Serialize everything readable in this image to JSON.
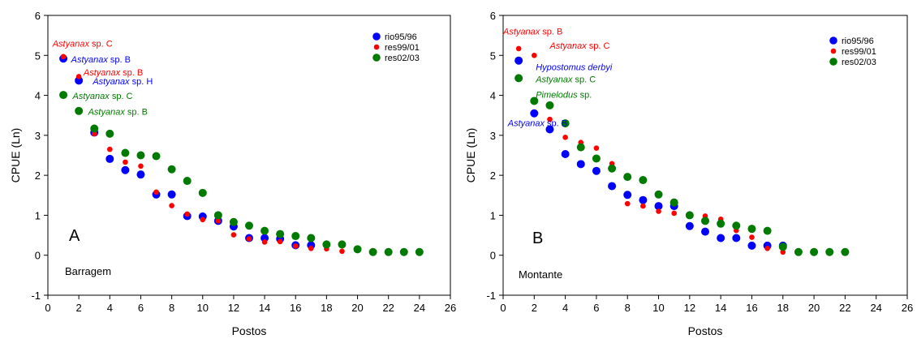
{
  "colors": {
    "rio95/96": "#0000ff",
    "res99/01": "#ff0000",
    "res02/03": "#007a00"
  },
  "chart_data": [
    {
      "type": "scatter",
      "panel_letter": "A",
      "site_label": "Barragem",
      "xlabel": "Postos",
      "ylabel": "CPUE (Ln)",
      "xlim": [
        0,
        26
      ],
      "ylim": [
        -1,
        6
      ],
      "xticks": [
        "0",
        "2",
        "4",
        "6",
        "8",
        "10",
        "12",
        "14",
        "16",
        "18",
        "20",
        "22",
        "24",
        "26"
      ],
      "yticks": [
        "-1",
        "0",
        "1",
        "2",
        "3",
        "4",
        "5",
        "6"
      ],
      "grid": false,
      "legend_position": "top-right",
      "series": [
        {
          "name": "rio95/96",
          "marker": "large",
          "x": [
            1,
            2,
            3,
            4,
            5,
            6,
            7,
            8,
            9,
            10,
            11,
            12,
            13,
            14,
            15,
            16,
            17
          ],
          "y": [
            4.92,
            4.37,
            3.07,
            2.41,
            2.13,
            2.02,
            1.52,
            1.52,
            0.98,
            0.97,
            0.86,
            0.72,
            0.43,
            0.43,
            0.41,
            0.25,
            0.25
          ]
        },
        {
          "name": "res99/01",
          "marker": "small",
          "x": [
            1,
            2,
            3,
            4,
            5,
            6,
            7,
            8,
            9,
            10,
            11,
            12,
            13,
            14,
            15,
            16,
            17,
            18,
            19
          ],
          "y": [
            4.97,
            4.47,
            3.04,
            2.65,
            2.33,
            2.23,
            1.58,
            1.24,
            1.03,
            0.89,
            0.86,
            0.51,
            0.41,
            0.33,
            0.34,
            0.23,
            0.17,
            0.16,
            0.1
          ]
        },
        {
          "name": "res02/03",
          "marker": "large",
          "x": [
            1,
            2,
            3,
            4,
            5,
            6,
            7,
            8,
            9,
            10,
            11,
            12,
            13,
            14,
            15,
            16,
            17,
            18,
            19,
            20,
            21,
            22,
            23,
            24
          ],
          "y": [
            4.01,
            3.61,
            3.17,
            3.04,
            2.56,
            2.5,
            2.48,
            2.15,
            1.86,
            1.56,
            1.0,
            0.83,
            0.74,
            0.61,
            0.53,
            0.48,
            0.43,
            0.27,
            0.27,
            0.15,
            0.08,
            0.08,
            0.08,
            0.08
          ]
        }
      ],
      "annotations": [
        {
          "genus": "Astyanax",
          "rest": " sp. C",
          "color": "#ff0000",
          "x": 0.3,
          "y": 5.22
        },
        {
          "genus": "Astyanax",
          "rest": " sp. B",
          "color": "#0000ff",
          "x": 1.5,
          "y": 4.82
        },
        {
          "genus": "Astyanax",
          "rest": " sp. B",
          "color": "#ff0000",
          "x": 2.3,
          "y": 4.5
        },
        {
          "genus": "Astyanax",
          "rest": " sp. H",
          "color": "#0000ff",
          "x": 2.9,
          "y": 4.28
        },
        {
          "genus": "Astyanax",
          "rest": " sp. C",
          "color": "#007a00",
          "x": 1.6,
          "y": 3.91
        },
        {
          "genus": "Astyanax",
          "rest": " sp. B",
          "color": "#007a00",
          "x": 2.6,
          "y": 3.51
        }
      ]
    },
    {
      "type": "scatter",
      "panel_letter": "B",
      "site_label": "Montante",
      "xlabel": "Postos",
      "ylabel": "CPUE (Ln)",
      "xlim": [
        0,
        26
      ],
      "ylim": [
        -1,
        6
      ],
      "xticks": [
        "0",
        "2",
        "4",
        "6",
        "8",
        "10",
        "12",
        "14",
        "16",
        "18",
        "20",
        "22",
        "24",
        "26"
      ],
      "yticks": [
        "-1",
        "0",
        "1",
        "2",
        "3",
        "4",
        "5",
        "6"
      ],
      "grid": false,
      "legend_position": "top-right",
      "series": [
        {
          "name": "rio95/96",
          "marker": "large",
          "x": [
            1,
            2,
            3,
            4,
            5,
            6,
            7,
            8,
            9,
            10,
            11,
            12,
            13,
            14,
            15,
            16,
            17,
            18
          ],
          "y": [
            4.87,
            3.55,
            3.15,
            2.53,
            2.28,
            2.11,
            1.73,
            1.51,
            1.38,
            1.23,
            1.23,
            0.73,
            0.59,
            0.43,
            0.43,
            0.24,
            0.24,
            0.24
          ]
        },
        {
          "name": "res99/01",
          "marker": "small",
          "x": [
            1,
            2,
            3,
            4,
            5,
            6,
            7,
            8,
            9,
            10,
            11,
            12,
            13,
            14,
            15,
            16,
            17,
            18
          ],
          "y": [
            5.17,
            5.0,
            3.4,
            2.95,
            2.82,
            2.68,
            2.29,
            1.29,
            1.23,
            1.1,
            1.05,
            0.99,
            0.98,
            0.9,
            0.62,
            0.45,
            0.17,
            0.08
          ]
        },
        {
          "name": "res02/03",
          "marker": "large",
          "x": [
            1,
            2,
            3,
            4,
            5,
            6,
            7,
            8,
            9,
            10,
            11,
            12,
            13,
            14,
            15,
            16,
            17,
            18,
            19,
            20,
            21,
            22
          ],
          "y": [
            4.43,
            3.86,
            3.75,
            3.3,
            2.7,
            2.42,
            2.17,
            1.96,
            1.88,
            1.52,
            1.32,
            1.0,
            0.86,
            0.79,
            0.74,
            0.66,
            0.61,
            0.21,
            0.08,
            0.08,
            0.08,
            0.08
          ]
        }
      ],
      "annotations": [
        {
          "genus": "Astyanax",
          "rest": " sp. B",
          "color": "#ff0000",
          "x": 0.0,
          "y": 5.52
        },
        {
          "genus": "Astyanax",
          "rest": " sp. C",
          "color": "#ff0000",
          "x": 3.0,
          "y": 5.17
        },
        {
          "genus": "Hypostomus derbyi",
          "rest": "",
          "color": "#0000ff",
          "x": 2.1,
          "y": 4.63
        },
        {
          "genus": "Astyanax",
          "rest": " sp. C",
          "color": "#007a00",
          "x": 2.1,
          "y": 4.33
        },
        {
          "genus": "Pimelodus",
          "rest": " sp.",
          "color": "#007a00",
          "x": 2.1,
          "y": 3.94
        },
        {
          "genus": "Astyanax",
          "rest": " sp. B",
          "color": "#0000ff",
          "x": 0.3,
          "y": 3.23
        }
      ]
    }
  ]
}
